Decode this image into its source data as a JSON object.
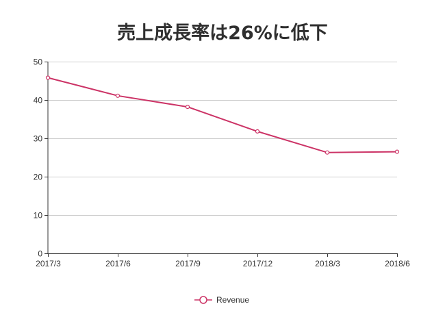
{
  "chart_data": {
    "type": "line",
    "title": "売上成長率は26%に低下",
    "xlabel": "",
    "ylabel": "",
    "categories": [
      "2017/3",
      "2017/6",
      "2017/9",
      "2017/12",
      "2018/3",
      "2018/6"
    ],
    "series": [
      {
        "name": "Revenue",
        "values": [
          45.8,
          41.1,
          38.2,
          31.8,
          26.3,
          26.5
        ]
      }
    ],
    "ylim": [
      0,
      50
    ],
    "yticks": [
      0,
      10,
      20,
      30,
      40,
      50
    ],
    "grid": true,
    "legend": "bottom-center",
    "colors": {
      "line": "#cc3366",
      "grid": "#cccccc",
      "axis": "#333333"
    }
  }
}
